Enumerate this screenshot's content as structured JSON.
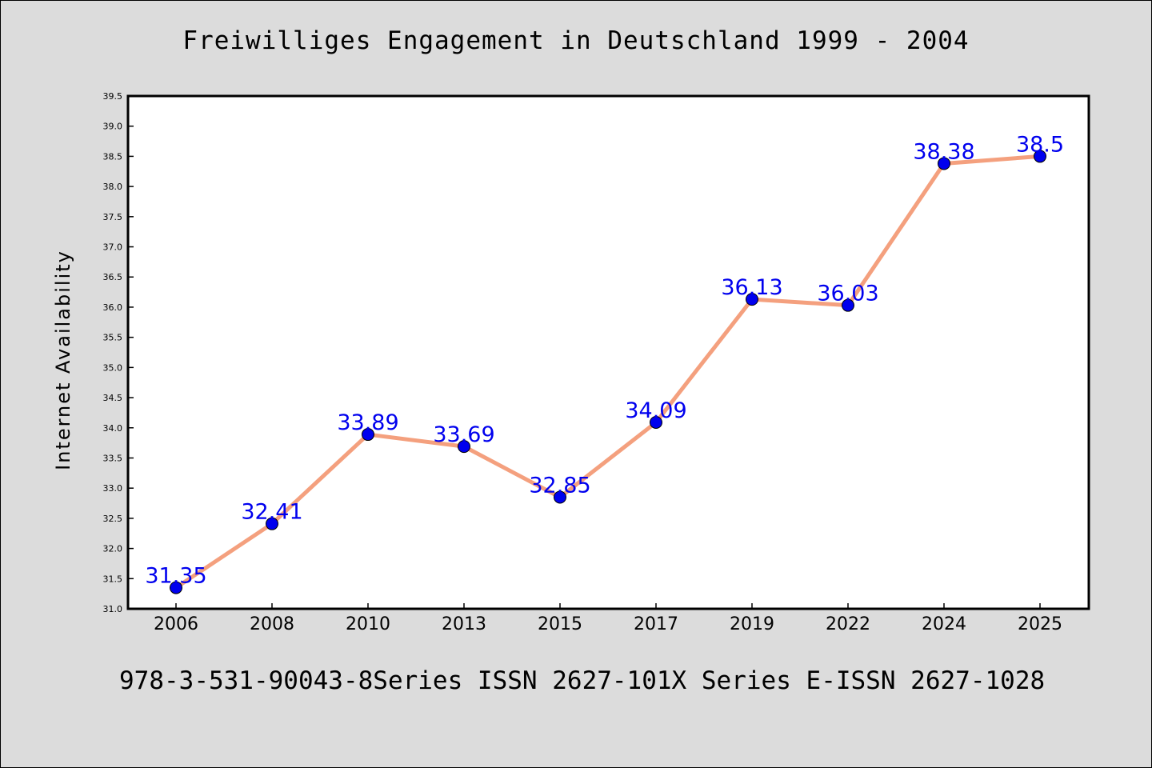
{
  "chart_data": {
    "type": "line",
    "title": "Freiwilliges Engagement in Deutschland 1999 - 2004",
    "xlabel": "",
    "ylabel": "Internet Availability",
    "categories": [
      "2006",
      "2008",
      "2010",
      "2013",
      "2015",
      "2017",
      "2019",
      "2022",
      "2024",
      "2025"
    ],
    "series": [
      {
        "values": [
          31.35,
          32.41,
          33.89,
          33.69,
          32.85,
          34.09,
          36.13,
          36.03,
          38.38,
          38.5
        ],
        "labels": [
          "31.35",
          "32.41",
          "33.89",
          "33.69",
          "32.85",
          "34.09",
          "36.13",
          "36.03",
          "38.38",
          "38.5"
        ],
        "line_color": "#f4a07e",
        "marker_color": "#0000ee"
      }
    ],
    "ylim": [
      31.0,
      39.5
    ],
    "yticks": [
      "31.0",
      "31.5",
      "32.0",
      "32.5",
      "33.0",
      "33.5",
      "34.0",
      "34.5",
      "35.0",
      "35.5",
      "36.0",
      "36.5",
      "37.0",
      "37.5",
      "38.0",
      "38.5",
      "39.0",
      "39.5"
    ],
    "grid": false,
    "legend": "none"
  },
  "footer": {
    "text": "978-3-531-90043-8Series ISSN 2627-101X Series E-ISSN 2627-1028"
  },
  "colors": {
    "background": "#dcdcdc",
    "plot_background": "#ffffff",
    "line": "#f4a07e",
    "marker": "#0000ee",
    "data_label": "#0000ee"
  }
}
